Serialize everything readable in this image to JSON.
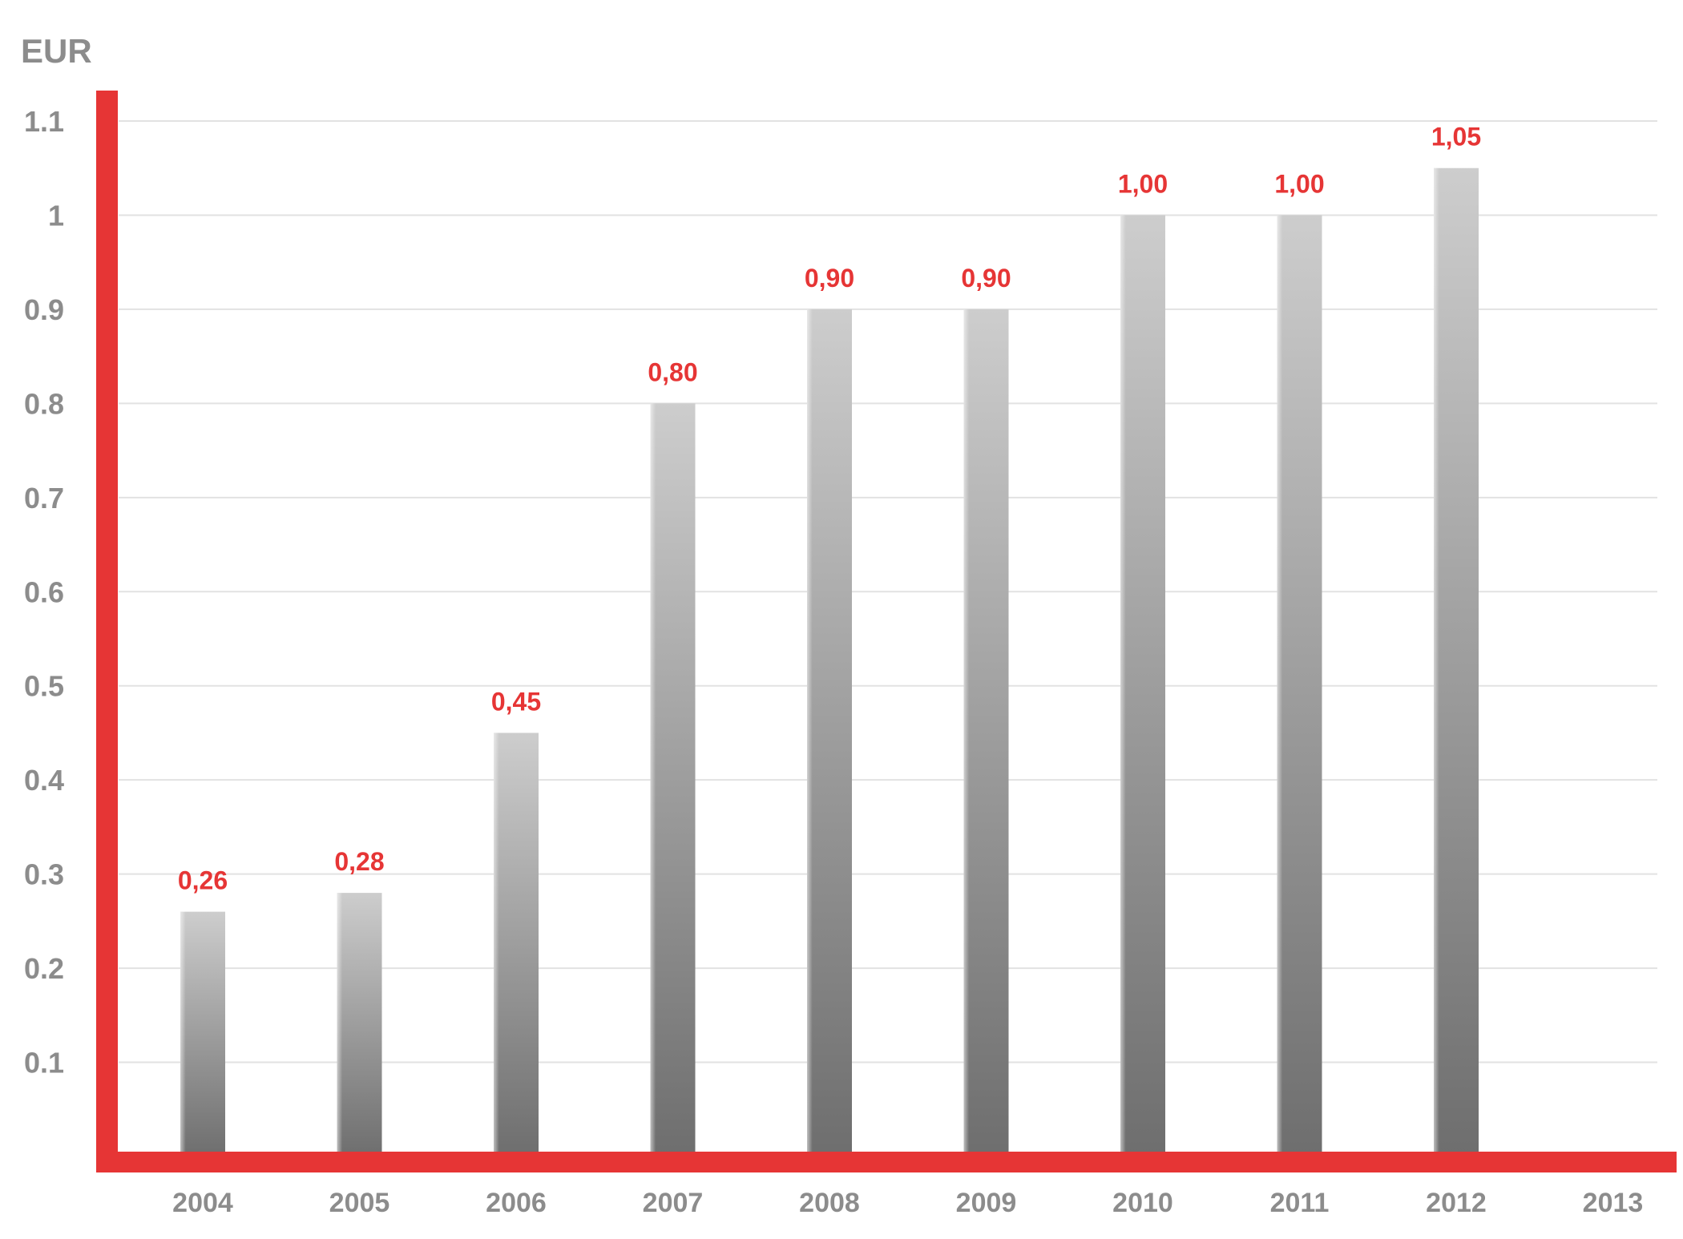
{
  "chart_data": {
    "type": "bar",
    "ylabel": "EUR",
    "xlabel": "",
    "title": "",
    "categories": [
      "2004",
      "2005",
      "2006",
      "2007",
      "2008",
      "2009",
      "2010",
      "2011",
      "2012",
      "2013"
    ],
    "values": [
      0.26,
      0.28,
      0.45,
      0.8,
      0.9,
      0.9,
      1.0,
      1.0,
      1.05,
      null
    ],
    "data_labels": [
      "0,26",
      "0,28",
      "0,45",
      "0,80",
      "0,90",
      "0,90",
      "1,00",
      "1,00",
      "1,05",
      ""
    ],
    "yticks": [
      "0.1",
      "0.2",
      "0.3",
      "0.4",
      "0.5",
      "0.6",
      "0.7",
      "0.8",
      "0.9",
      "1",
      "1.1"
    ],
    "ylim": [
      0,
      1.1
    ],
    "grid": true,
    "legend": "none"
  },
  "colors": {
    "axis": "#e63535",
    "data_label": "#e63535",
    "tick_text": "#8c8c8c",
    "grid": "#e2e2e2",
    "bar_top": "#cdcdcd",
    "bar_bottom": "#6e6e6e"
  }
}
